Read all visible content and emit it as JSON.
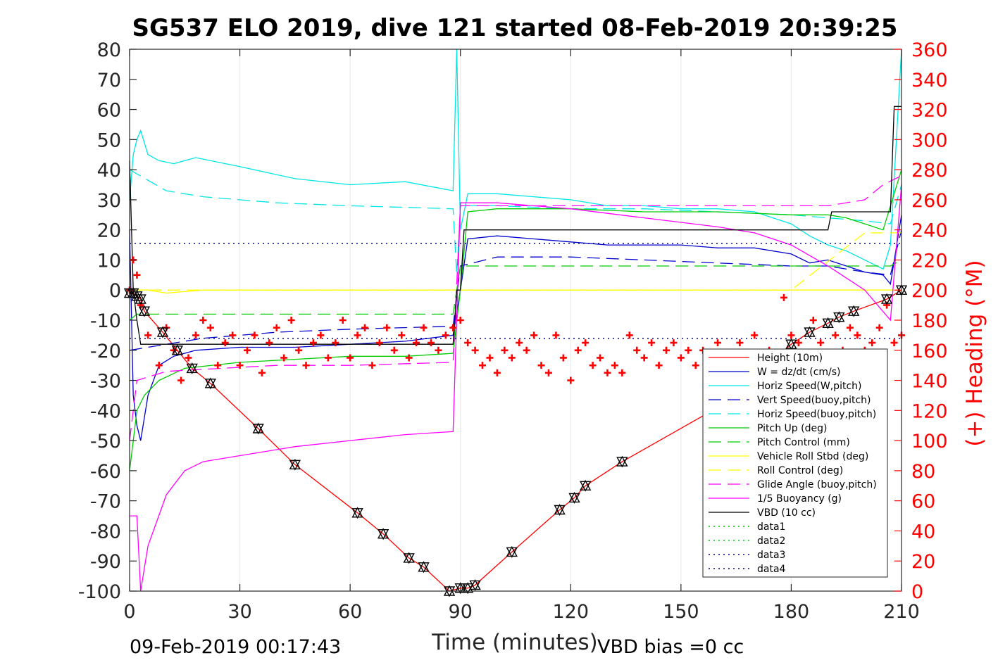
{
  "chart_data": {
    "type": "line",
    "title": "SG537 ELO 2019, dive 121 started 08-Feb-2019 20:39:25",
    "xlabel": "Time (minutes)",
    "ylabel_right": "(+) Heading (°M)",
    "xlim": [
      0,
      210
    ],
    "ylim_left": [
      -100,
      80
    ],
    "ylim_right": [
      0,
      360
    ],
    "xticks": [
      0,
      30,
      60,
      90,
      120,
      150,
      180,
      210
    ],
    "yticks_left": [
      80,
      70,
      60,
      50,
      40,
      30,
      20,
      10,
      0,
      -10,
      -20,
      -30,
      -40,
      -50,
      -60,
      -70,
      -80,
      -90,
      -100
    ],
    "yticks_right": [
      360,
      340,
      320,
      300,
      280,
      260,
      240,
      220,
      200,
      180,
      160,
      140,
      120,
      100,
      80,
      60,
      40,
      20,
      0
    ],
    "footer_left": "09-Feb-2019 00:17:43",
    "footer_right": "VBD bias =0 cc",
    "legend_position": "bottom-right",
    "series": [
      {
        "name": "Height (10m)",
        "color": "#ff0000",
        "style": "solid",
        "markers": "triangles",
        "x": [
          0,
          1,
          2,
          3,
          4,
          9,
          13,
          17,
          22,
          35,
          45,
          62,
          69,
          76,
          80,
          87,
          90,
          92,
          94,
          104,
          117,
          121,
          124,
          134,
          160,
          180,
          185,
          190,
          193,
          197,
          206,
          210
        ],
        "y": [
          -1,
          -1,
          -2,
          -3,
          -7,
          -14,
          -20,
          -26,
          -31,
          -46,
          -58,
          -74,
          -81,
          -89,
          -92,
          -100,
          -99,
          -99,
          -98,
          -87,
          -73,
          -69,
          -65,
          -57,
          -39,
          -18,
          -14,
          -11,
          -9,
          -7,
          -3,
          0
        ]
      },
      {
        "name": "W = dz/dt (cm/s)",
        "color": "#0000cc",
        "style": "solid",
        "x": [
          0,
          1,
          2,
          3,
          5,
          8,
          12,
          18,
          30,
          45,
          60,
          75,
          88,
          90,
          92,
          100,
          110,
          120,
          130,
          140,
          150,
          160,
          170,
          180,
          185,
          190,
          195,
          200,
          205,
          207,
          210
        ],
        "y": [
          20,
          -35,
          -45,
          -50,
          -35,
          -25,
          -22,
          -20,
          -19,
          -19,
          -18,
          -17,
          -15,
          0,
          17,
          18,
          17,
          16,
          15,
          15,
          15,
          14,
          14,
          12,
          9,
          10,
          8,
          6,
          5,
          2,
          25
        ]
      },
      {
        "name": "Horiz Speed(W,pitch)",
        "color": "#00e6e6",
        "style": "solid",
        "x": [
          0,
          1,
          2,
          3,
          5,
          8,
          12,
          18,
          30,
          45,
          60,
          75,
          88,
          89,
          90,
          92,
          100,
          110,
          120,
          130,
          140,
          150,
          160,
          170,
          180,
          185,
          190,
          195,
          200,
          205,
          207,
          210
        ],
        "y": [
          30,
          45,
          50,
          53,
          45,
          43,
          42,
          44,
          41,
          37,
          35,
          36,
          33,
          80,
          20,
          32,
          32,
          31,
          30,
          28,
          28,
          27,
          27,
          26,
          22,
          18,
          15,
          13,
          10,
          7,
          15,
          80
        ]
      },
      {
        "name": "Vert Speed(buoy,pitch)",
        "color": "#0000cc",
        "style": "dashed",
        "x": [
          0,
          10,
          20,
          40,
          60,
          88,
          90,
          100,
          120,
          140,
          160,
          180,
          190,
          200,
          207,
          210
        ],
        "y": [
          -20,
          -18,
          -16,
          -14,
          -13,
          -12,
          8,
          11,
          11,
          10,
          9,
          8,
          8,
          6,
          5,
          20
        ]
      },
      {
        "name": "Horiz Speed(buoy,pitch)",
        "color": "#00e6e6",
        "style": "dashed",
        "x": [
          0,
          10,
          20,
          40,
          60,
          88,
          89,
          90,
          100,
          120,
          140,
          160,
          180,
          190,
          200,
          207,
          210
        ],
        "y": [
          40,
          33,
          31,
          29,
          28,
          27,
          5,
          28,
          28,
          27,
          27,
          26,
          25,
          24,
          23,
          22,
          35
        ]
      },
      {
        "name": "Pitch Up (deg)",
        "color": "#00cc00",
        "style": "solid",
        "x": [
          0,
          2,
          4,
          8,
          15,
          30,
          45,
          60,
          75,
          88,
          90,
          92,
          100,
          120,
          140,
          160,
          180,
          190,
          195,
          200,
          205,
          210
        ],
        "y": [
          -60,
          -40,
          -35,
          -30,
          -26,
          -24,
          -23,
          -22,
          -22,
          -21,
          0,
          26,
          27,
          27,
          26,
          26,
          25,
          25,
          24,
          22,
          20,
          40
        ]
      },
      {
        "name": "Pitch Control (mm)",
        "color": "#00cc00",
        "style": "dashed",
        "x": [
          0,
          2,
          10,
          40,
          60,
          88,
          90,
          120,
          150,
          180,
          200,
          207,
          210
        ],
        "y": [
          -10,
          -8,
          -8,
          -8,
          -8,
          -8,
          8,
          8,
          8,
          8,
          8,
          8,
          10
        ]
      },
      {
        "name": "Vehicle Roll Stbd (deg)",
        "color": "#ffff00",
        "style": "solid",
        "x": [
          0,
          5,
          10,
          20,
          30,
          45,
          60,
          75,
          88,
          90,
          100,
          110,
          120,
          130,
          140,
          150,
          160,
          170,
          180,
          190,
          200,
          205,
          210
        ],
        "y": [
          0,
          0,
          -1,
          0,
          0,
          0,
          0,
          0,
          0,
          0,
          0,
          0,
          0,
          0,
          0,
          0,
          0,
          0,
          0,
          0,
          0,
          0,
          0
        ]
      },
      {
        "name": "Roll Control (deg)",
        "color": "#ffff00",
        "style": "dashed",
        "x": [
          0,
          10,
          30,
          60,
          88,
          90,
          120,
          150,
          180,
          200,
          210
        ],
        "y": [
          0,
          0,
          0,
          0,
          0,
          0,
          0,
          0,
          0,
          19,
          19
        ]
      },
      {
        "name": "Glide Angle (buoy,pitch)",
        "color": "#ff00ff",
        "style": "dashed",
        "x": [
          0,
          2,
          10,
          40,
          60,
          88,
          90,
          100,
          120,
          140,
          160,
          180,
          190,
          200,
          205,
          210
        ],
        "y": [
          -50,
          -30,
          -27,
          -25,
          -25,
          -24,
          28,
          28,
          28,
          28,
          28,
          28,
          28,
          30,
          35,
          38
        ]
      },
      {
        "name": "1/5 Buoyancy (g)",
        "color": "#ff00ff",
        "style": "solid",
        "x": [
          0,
          2,
          3,
          5,
          10,
          15,
          20,
          30,
          45,
          60,
          75,
          88,
          90,
          100,
          120,
          140,
          160,
          170,
          180,
          190,
          200,
          207,
          210
        ],
        "y": [
          -75,
          -75,
          -100,
          -85,
          -68,
          -60,
          -57,
          -55,
          -52,
          -50,
          -48,
          -47,
          29,
          29,
          27,
          24,
          21,
          19,
          15,
          8,
          0,
          -10,
          35
        ]
      },
      {
        "name": "VBD (10 cc)",
        "color": "#000000",
        "style": "solid",
        "x": [
          0,
          1,
          2,
          3,
          12,
          20,
          88,
          89,
          90,
          91,
          100,
          120,
          140,
          180,
          190,
          191,
          207,
          208,
          210
        ],
        "y": [
          43,
          0,
          -10,
          -18,
          -18,
          -18,
          -18,
          0,
          0,
          20,
          20,
          20,
          20,
          20,
          20,
          26,
          26,
          61,
          61
        ]
      },
      {
        "name": "data1",
        "color": "#00cc00",
        "style": "dotted",
        "x": [],
        "y": []
      },
      {
        "name": "data2",
        "color": "#00cc00",
        "style": "dotted",
        "x": [],
        "y": []
      },
      {
        "name": "data3",
        "color": "#000080",
        "style": "dotted",
        "x": [
          0,
          210
        ],
        "y": [
          -16,
          -16
        ]
      },
      {
        "name": "data4",
        "color": "#000080",
        "style": "dotted",
        "x": [
          0,
          210
        ],
        "y": [
          15.5,
          15.5
        ]
      }
    ],
    "heading_series": {
      "axis": "right",
      "color": "#ff0000",
      "marker": "+",
      "x": [
        0,
        1,
        2,
        3,
        5,
        8,
        10,
        12,
        14,
        16,
        18,
        20,
        22,
        24,
        26,
        28,
        30,
        32,
        34,
        36,
        38,
        40,
        42,
        44,
        46,
        48,
        50,
        52,
        54,
        56,
        58,
        60,
        62,
        64,
        66,
        68,
        70,
        72,
        74,
        76,
        78,
        80,
        82,
        84,
        86,
        88,
        90,
        92,
        94,
        96,
        98,
        100,
        102,
        104,
        106,
        108,
        110,
        112,
        114,
        116,
        118,
        120,
        122,
        124,
        126,
        128,
        130,
        132,
        134,
        136,
        138,
        140,
        142,
        144,
        146,
        148,
        150,
        152,
        154,
        156,
        158,
        160,
        162,
        164,
        166,
        168,
        170,
        172,
        174,
        176,
        178,
        180,
        182,
        184,
        186,
        188,
        190,
        192,
        194,
        196,
        198,
        200,
        202,
        204,
        206,
        208,
        210
      ],
      "y": [
        200,
        220,
        210,
        190,
        170,
        150,
        175,
        160,
        140,
        155,
        170,
        180,
        175,
        150,
        165,
        170,
        150,
        160,
        170,
        145,
        165,
        175,
        155,
        180,
        160,
        150,
        165,
        170,
        155,
        165,
        180,
        155,
        170,
        175,
        150,
        165,
        175,
        160,
        170,
        155,
        165,
        175,
        165,
        160,
        170,
        175,
        180,
        165,
        160,
        150,
        155,
        145,
        160,
        155,
        165,
        160,
        170,
        150,
        145,
        170,
        155,
        140,
        160,
        165,
        150,
        155,
        145,
        150,
        145,
        170,
        160,
        155,
        165,
        150,
        160,
        165,
        155,
        160,
        150,
        160,
        145,
        165,
        150,
        155,
        165,
        145,
        170,
        150,
        160,
        145,
        195,
        170,
        165,
        155,
        180,
        165,
        150,
        170,
        160,
        175,
        170,
        160,
        165,
        175,
        190,
        165,
        170
      ]
    }
  }
}
